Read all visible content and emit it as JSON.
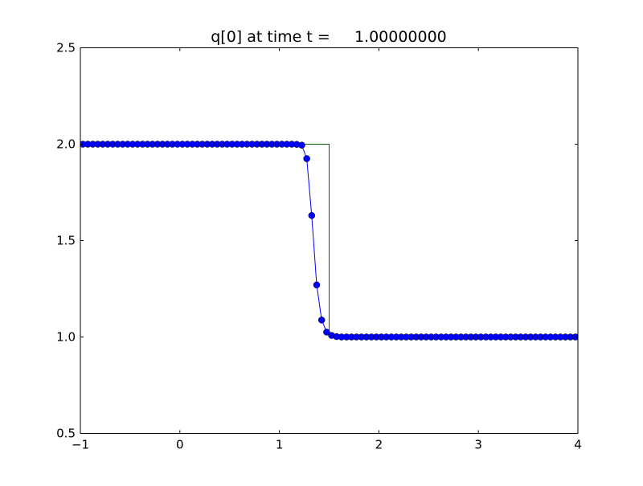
{
  "chart_data": {
    "type": "line",
    "title": "q[0] at time t =     1.00000000",
    "xlabel": "",
    "ylabel": "",
    "xlim": [
      -1,
      4
    ],
    "ylim": [
      0.5,
      2.5
    ],
    "xticks": [
      "−1",
      "0",
      "1",
      "2",
      "3",
      "4"
    ],
    "xtick_values": [
      -1,
      0,
      1,
      2,
      3,
      4
    ],
    "yticks": [
      "0.5",
      "1.0",
      "1.5",
      "2.0",
      "2.5"
    ],
    "ytick_values": [
      0.5,
      1.0,
      1.5,
      2.0,
      2.5
    ],
    "grid": false,
    "series": [
      {
        "color": "#0000ff",
        "marker": "circle",
        "x": [
          -0.975,
          -0.925,
          -0.875,
          -0.825,
          -0.775,
          -0.725,
          -0.675,
          -0.625,
          -0.575,
          -0.525,
          -0.475,
          -0.425,
          -0.375,
          -0.325,
          -0.275,
          -0.225,
          -0.175,
          -0.125,
          -0.075,
          -0.025,
          0.025,
          0.075,
          0.125,
          0.175,
          0.225,
          0.275,
          0.325,
          0.375,
          0.425,
          0.475,
          0.525,
          0.575,
          0.625,
          0.675,
          0.725,
          0.775,
          0.825,
          0.875,
          0.925,
          0.975,
          1.025,
          1.075,
          1.125,
          1.175,
          1.225,
          1.275,
          1.325,
          1.375,
          1.425,
          1.475,
          1.525,
          1.575,
          1.625,
          1.675,
          1.725,
          1.775,
          1.825,
          1.875,
          1.925,
          1.975,
          2.025,
          2.075,
          2.125,
          2.175,
          2.225,
          2.275,
          2.325,
          2.375,
          2.425,
          2.475,
          2.525,
          2.575,
          2.625,
          2.675,
          2.725,
          2.775,
          2.825,
          2.875,
          2.925,
          2.975,
          3.025,
          3.075,
          3.125,
          3.175,
          3.225,
          3.275,
          3.325,
          3.375,
          3.425,
          3.475,
          3.525,
          3.575,
          3.625,
          3.675,
          3.725,
          3.775,
          3.825,
          3.875,
          3.925,
          3.975
        ],
        "y": [
          2,
          2,
          2,
          2,
          2,
          2,
          2,
          2,
          2,
          2,
          2,
          2,
          2,
          2,
          2,
          2,
          2,
          2,
          2,
          2,
          2,
          2,
          2,
          2,
          2,
          2,
          2,
          2,
          2,
          2,
          2,
          2,
          2,
          2,
          2,
          2,
          2,
          2,
          2,
          2,
          2,
          2,
          2,
          1.999,
          1.995,
          1.925,
          1.63,
          1.27,
          1.088,
          1.025,
          1.008,
          1.002,
          1,
          1,
          1,
          1,
          1,
          1,
          1,
          1,
          1,
          1,
          1,
          1,
          1,
          1,
          1,
          1,
          1,
          1,
          1,
          1,
          1,
          1,
          1,
          1,
          1,
          1,
          1,
          1,
          1,
          1,
          1,
          1,
          1,
          1,
          1,
          1,
          1,
          1,
          1,
          1,
          1,
          1,
          1,
          1,
          1,
          1,
          1,
          1
        ]
      },
      {
        "color": "#006400",
        "marker": "none",
        "x": [
          -1,
          1.5,
          1.5,
          4
        ],
        "y": [
          2,
          2,
          1,
          1
        ]
      }
    ]
  }
}
